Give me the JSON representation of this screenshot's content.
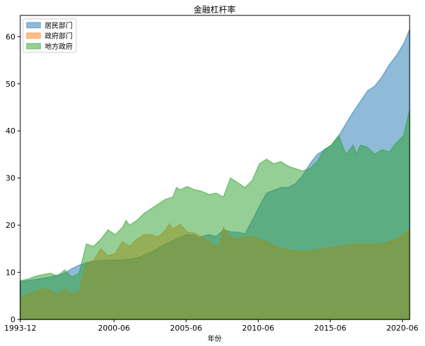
{
  "chart_data": {
    "type": "area",
    "title": "金融杠杆率",
    "xlabel": "年份",
    "ylabel": "",
    "xlim": [
      1993.917,
      2020.917
    ],
    "ylim": [
      0,
      64.5
    ],
    "grid": false,
    "legend_position": "top-left",
    "x_ticks": [
      {
        "label": "1993-12",
        "value": 1993.917
      },
      {
        "label": "2000-06",
        "value": 2000.417
      },
      {
        "label": "2005-06",
        "value": 2005.417
      },
      {
        "label": "2010-06",
        "value": 2010.417
      },
      {
        "label": "2015-06",
        "value": 2015.417
      },
      {
        "label": "2020-06",
        "value": 2020.417
      }
    ],
    "y_ticks": [
      0,
      10,
      20,
      30,
      40,
      50,
      60
    ],
    "series": [
      {
        "name": "居民部门",
        "color": "#1f77b4",
        "points": [
          [
            1993.917,
            8.0
          ],
          [
            1995.0,
            8.5
          ],
          [
            1996.0,
            9.0
          ],
          [
            1997.0,
            9.8
          ],
          [
            1997.5,
            10.8
          ],
          [
            1998.0,
            11.5
          ],
          [
            1998.5,
            12.0
          ],
          [
            1999.0,
            12.3
          ],
          [
            2000.0,
            12.6
          ],
          [
            2001.0,
            12.6
          ],
          [
            2002.0,
            13.0
          ],
          [
            2003.0,
            14.3
          ],
          [
            2004.0,
            16.0
          ],
          [
            2005.0,
            17.4
          ],
          [
            2005.5,
            18.0
          ],
          [
            2006.0,
            17.8
          ],
          [
            2006.25,
            17.2
          ],
          [
            2006.5,
            17.6
          ],
          [
            2007.0,
            18.0
          ],
          [
            2007.5,
            17.6
          ],
          [
            2008.0,
            19.0
          ],
          [
            2008.5,
            18.6
          ],
          [
            2009.0,
            18.5
          ],
          [
            2009.5,
            18.2
          ],
          [
            2010.0,
            21.0
          ],
          [
            2010.5,
            24.0
          ],
          [
            2011.0,
            26.8
          ],
          [
            2012.0,
            28.0
          ],
          [
            2012.5,
            28.0
          ],
          [
            2013.0,
            28.8
          ],
          [
            2013.5,
            30.5
          ],
          [
            2014.0,
            33.0
          ],
          [
            2014.5,
            35.0
          ],
          [
            2015.0,
            36.0
          ],
          [
            2015.5,
            37.0
          ],
          [
            2016.0,
            39.0
          ],
          [
            2016.5,
            41.5
          ],
          [
            2017.0,
            44.0
          ],
          [
            2018.0,
            48.5
          ],
          [
            2018.5,
            49.5
          ],
          [
            2019.0,
            51.5
          ],
          [
            2019.5,
            54.0
          ],
          [
            2020.0,
            56.0
          ],
          [
            2020.5,
            58.5
          ],
          [
            2020.917,
            61.5
          ]
        ]
      },
      {
        "name": "政府部门",
        "color": "#ff7f0e",
        "points": [
          [
            1993.917,
            4.5
          ],
          [
            1994.5,
            5.5
          ],
          [
            1995.0,
            6.0
          ],
          [
            1995.5,
            6.5
          ],
          [
            1996.0,
            6.2
          ],
          [
            1996.5,
            5.2
          ],
          [
            1997.0,
            6.5
          ],
          [
            1997.5,
            5.2
          ],
          [
            1998.0,
            6.0
          ],
          [
            1998.5,
            12.0
          ],
          [
            1999.0,
            12.5
          ],
          [
            1999.5,
            15.0
          ],
          [
            2000.0,
            13.5
          ],
          [
            2000.5,
            14.0
          ],
          [
            2001.0,
            16.5
          ],
          [
            2001.5,
            15.5
          ],
          [
            2002.0,
            17.0
          ],
          [
            2002.5,
            18.0
          ],
          [
            2003.0,
            18.0
          ],
          [
            2003.5,
            17.5
          ],
          [
            2004.0,
            19.0
          ],
          [
            2004.25,
            20.3
          ],
          [
            2004.5,
            19.2
          ],
          [
            2005.0,
            20.2
          ],
          [
            2005.5,
            18.5
          ],
          [
            2006.0,
            18.3
          ],
          [
            2006.5,
            17.5
          ],
          [
            2007.0,
            16.5
          ],
          [
            2007.5,
            15.5
          ],
          [
            2007.75,
            15.8
          ],
          [
            2008.0,
            19.5
          ],
          [
            2008.5,
            17.5
          ],
          [
            2009.0,
            17.0
          ],
          [
            2009.5,
            17.5
          ],
          [
            2010.0,
            17.5
          ],
          [
            2010.5,
            17.0
          ],
          [
            2011.0,
            16.5
          ],
          [
            2012.0,
            15.0
          ],
          [
            2013.0,
            14.5
          ],
          [
            2014.0,
            14.5
          ],
          [
            2015.0,
            15.0
          ],
          [
            2016.0,
            15.5
          ],
          [
            2017.0,
            16.0
          ],
          [
            2018.0,
            16.0
          ],
          [
            2019.0,
            16.0
          ],
          [
            2020.0,
            17.0
          ],
          [
            2020.917,
            19.0
          ]
        ]
      },
      {
        "name": "地方政府",
        "color": "#2ca02c",
        "points": [
          [
            1993.917,
            8.2
          ],
          [
            1994.5,
            8.6
          ],
          [
            1995.0,
            9.2
          ],
          [
            1995.5,
            9.5
          ],
          [
            1996.0,
            9.8
          ],
          [
            1996.5,
            9.2
          ],
          [
            1997.0,
            10.5
          ],
          [
            1997.5,
            9.0
          ],
          [
            1998.0,
            9.8
          ],
          [
            1998.5,
            16.0
          ],
          [
            1999.0,
            15.5
          ],
          [
            1999.5,
            17.0
          ],
          [
            2000.0,
            19.0
          ],
          [
            2000.5,
            18.0
          ],
          [
            2001.0,
            19.5
          ],
          [
            2001.25,
            21.0
          ],
          [
            2001.5,
            20.0
          ],
          [
            2002.0,
            21.0
          ],
          [
            2002.5,
            22.5
          ],
          [
            2003.0,
            23.5
          ],
          [
            2003.5,
            24.5
          ],
          [
            2004.0,
            25.5
          ],
          [
            2004.5,
            26.0
          ],
          [
            2004.75,
            28.0
          ],
          [
            2005.0,
            27.5
          ],
          [
            2005.5,
            28.2
          ],
          [
            2006.0,
            27.5
          ],
          [
            2006.5,
            27.2
          ],
          [
            2007.0,
            26.5
          ],
          [
            2007.5,
            26.8
          ],
          [
            2008.0,
            26.0
          ],
          [
            2008.5,
            30.0
          ],
          [
            2009.0,
            29.0
          ],
          [
            2009.5,
            28.0
          ],
          [
            2010.0,
            29.5
          ],
          [
            2010.5,
            33.0
          ],
          [
            2011.0,
            34.0
          ],
          [
            2011.5,
            33.0
          ],
          [
            2012.0,
            33.5
          ],
          [
            2012.5,
            32.5
          ],
          [
            2013.0,
            32.0
          ],
          [
            2013.5,
            31.5
          ],
          [
            2014.0,
            32.0
          ],
          [
            2014.5,
            33.5
          ],
          [
            2015.0,
            36.0
          ],
          [
            2015.5,
            37.0
          ],
          [
            2016.0,
            39.0
          ],
          [
            2016.25,
            37.0
          ],
          [
            2016.5,
            35.0
          ],
          [
            2017.0,
            37.0
          ],
          [
            2017.25,
            35.0
          ],
          [
            2017.5,
            37.0
          ],
          [
            2018.0,
            36.5
          ],
          [
            2018.5,
            35.0
          ],
          [
            2019.0,
            36.0
          ],
          [
            2019.5,
            35.5
          ],
          [
            2020.0,
            37.5
          ],
          [
            2020.5,
            39.0
          ],
          [
            2020.917,
            44.5
          ]
        ]
      }
    ]
  }
}
